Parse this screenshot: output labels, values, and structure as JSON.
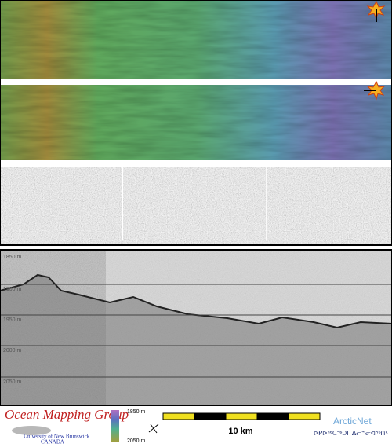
{
  "profile": {
    "depth_labels": [
      "1850 m",
      "1900 m",
      "1950 m",
      "2000 m",
      "2050 m"
    ]
  },
  "footer": {
    "group": "Ocean Mapping Group",
    "university": "University of New Brunswick",
    "country": "CANADA",
    "colorbar_top": "1850 m",
    "colorbar_bottom": "2050 m",
    "scale": "10 km",
    "partner": "ArcticNet",
    "partner_inuktitut": "ᐅᑭᐅᖅᑕᖅᑐᒥ ᐃᓕᓐᓂᐊᖅᑏᑦ"
  }
}
